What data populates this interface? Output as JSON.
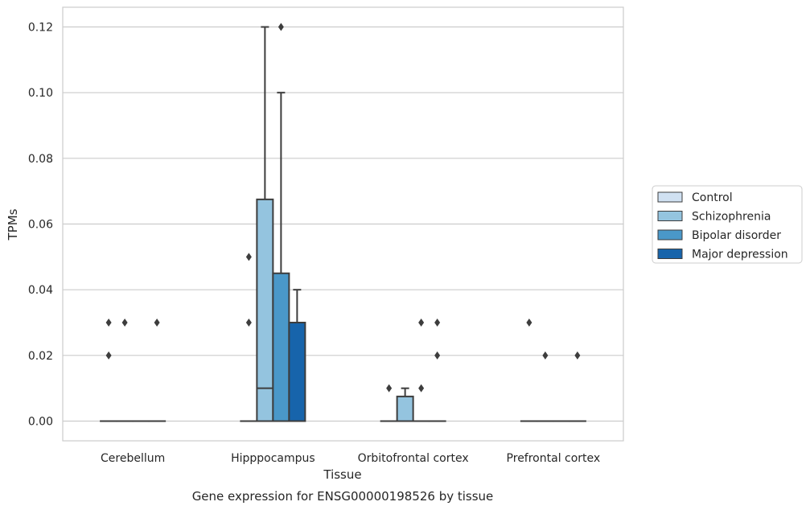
{
  "chart_data": {
    "type": "box",
    "caption": "Gene expression for ENSG00000198526 by tissue",
    "xlabel": "Tissue",
    "ylabel": "TPMs",
    "ylim": [
      -0.006,
      0.126
    ],
    "yticks": [
      "0.00",
      "0.02",
      "0.04",
      "0.06",
      "0.08",
      "0.10",
      "0.12"
    ],
    "grid": true,
    "legend_position": "right",
    "categories": [
      "Cerebellum",
      "Hipppocampus",
      "Orbitofrontal cortex",
      "Prefrontal cortex"
    ],
    "series": [
      {
        "name": "Control",
        "color": "#d0e1f2"
      },
      {
        "name": "Schizophrenia",
        "color": "#94c4df"
      },
      {
        "name": "Bipolar disorder",
        "color": "#4a98c9"
      },
      {
        "name": "Major depression",
        "color": "#1764ab"
      }
    ],
    "boxes": [
      [
        {
          "q1": 0,
          "median": 0,
          "q3": 0,
          "whisker_low": 0,
          "whisker_high": 0,
          "outliers": [
            0.02,
            0.03
          ]
        },
        {
          "q1": 0,
          "median": 0,
          "q3": 0,
          "whisker_low": 0,
          "whisker_high": 0,
          "outliers": [
            0.03
          ]
        },
        {
          "q1": 0,
          "median": 0,
          "q3": 0,
          "whisker_low": 0,
          "whisker_high": 0,
          "outliers": []
        },
        {
          "q1": 0,
          "median": 0,
          "q3": 0,
          "whisker_low": 0,
          "whisker_high": 0,
          "outliers": [
            0.03
          ]
        }
      ],
      [
        {
          "q1": 0,
          "median": 0,
          "q3": 0,
          "whisker_low": 0,
          "whisker_high": 0,
          "outliers": [
            0.03,
            0.05
          ]
        },
        {
          "q1": 0,
          "median": 0.01,
          "q3": 0.0675,
          "whisker_low": 0,
          "whisker_high": 0.12,
          "outliers": []
        },
        {
          "q1": 0,
          "median": 0,
          "q3": 0.045,
          "whisker_low": 0,
          "whisker_high": 0.1,
          "outliers": [
            0.12
          ]
        },
        {
          "q1": 0,
          "median": 0,
          "q3": 0.03,
          "whisker_low": 0,
          "whisker_high": 0.04,
          "outliers": []
        }
      ],
      [
        {
          "q1": 0,
          "median": 0,
          "q3": 0,
          "whisker_low": 0,
          "whisker_high": 0,
          "outliers": [
            0.01
          ]
        },
        {
          "q1": 0,
          "median": 0,
          "q3": 0.0075,
          "whisker_low": 0,
          "whisker_high": 0.01,
          "outliers": []
        },
        {
          "q1": 0,
          "median": 0,
          "q3": 0,
          "whisker_low": 0,
          "whisker_high": 0,
          "outliers": [
            0.01,
            0.03
          ]
        },
        {
          "q1": 0,
          "median": 0,
          "q3": 0,
          "whisker_low": 0,
          "whisker_high": 0,
          "outliers": [
            0.02,
            0.03
          ]
        }
      ],
      [
        {
          "q1": 0,
          "median": 0,
          "q3": 0,
          "whisker_low": 0,
          "whisker_high": 0,
          "outliers": [
            0.03
          ]
        },
        {
          "q1": 0,
          "median": 0,
          "q3": 0,
          "whisker_low": 0,
          "whisker_high": 0,
          "outliers": [
            0.02
          ]
        },
        {
          "q1": 0,
          "median": 0,
          "q3": 0,
          "whisker_low": 0,
          "whisker_high": 0,
          "outliers": []
        },
        {
          "q1": 0,
          "median": 0,
          "q3": 0,
          "whisker_low": 0,
          "whisker_high": 0,
          "outliers": [
            0.02
          ]
        }
      ]
    ]
  }
}
